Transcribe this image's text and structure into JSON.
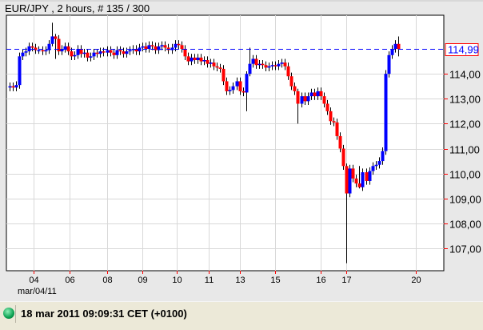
{
  "header": {
    "title": "EUR/JPY , 2 hours, # 135 / 300"
  },
  "status": {
    "indicator": "connected-green-led",
    "datetime": "18 mar 2011 09:09:31  CET (+0100)"
  },
  "chart_data": {
    "type": "candlestick",
    "symbol": "EUR/JPY",
    "timeframe": "2 hours",
    "ylim": [
      106.1,
      116.35
    ],
    "y_ticks": [
      "114,00",
      "113,00",
      "112,00",
      "111,00",
      "110,00",
      "109,00",
      "108,00",
      "107,00"
    ],
    "y_tick_values": [
      114,
      113,
      112,
      111,
      110,
      109,
      108,
      107
    ],
    "x_ticks": [
      {
        "label": "04",
        "index": 7.5
      },
      {
        "label": "06",
        "index": 18.5
      },
      {
        "label": "08",
        "index": 30
      },
      {
        "label": "09",
        "index": 41
      },
      {
        "label": "10",
        "index": 51.5
      },
      {
        "label": "11",
        "index": 61.5
      },
      {
        "label": "13",
        "index": 71
      },
      {
        "label": "15",
        "index": 82
      },
      {
        "label": "16",
        "index": 96
      },
      {
        "label": "17",
        "index": 104
      },
      {
        "label": "20",
        "index": 125.5
      }
    ],
    "x_sublabel": "mar/04/11",
    "current_price": {
      "value": 114.99,
      "label": "114,99",
      "line_color": "#0000ff",
      "box_color": "#ff0000"
    },
    "up_color": "#0000ff",
    "down_color": "#ff0000",
    "grid": true,
    "first_open": 113.45,
    "closes": [
      113.5,
      113.45,
      113.55,
      114.7,
      114.85,
      114.9,
      115.1,
      115.05,
      114.95,
      114.95,
      114.9,
      114.95,
      115.2,
      115.5,
      115.4,
      114.9,
      115.0,
      115.1,
      114.9,
      114.7,
      114.75,
      115.0,
      114.8,
      114.85,
      114.65,
      114.7,
      114.85,
      114.8,
      114.9,
      114.85,
      114.95,
      114.85,
      114.75,
      114.95,
      114.9,
      114.8,
      114.9,
      114.95,
      115.0,
      114.9,
      115.05,
      115.1,
      115.0,
      115.15,
      115.1,
      114.95,
      115.1,
      115.15,
      115.05,
      114.95,
      115.05,
      115.2,
      115.15,
      115.0,
      114.7,
      114.5,
      114.65,
      114.55,
      114.65,
      114.5,
      114.55,
      114.4,
      114.45,
      114.3,
      114.25,
      114.2,
      113.7,
      113.3,
      113.35,
      113.5,
      113.7,
      113.3,
      113.25,
      114.0,
      114.4,
      114.6,
      114.35,
      114.4,
      114.35,
      114.25,
      114.3,
      114.35,
      114.3,
      114.4,
      114.45,
      114.3,
      113.9,
      113.5,
      113.3,
      112.8,
      113.1,
      112.9,
      113.1,
      113.25,
      113.1,
      113.3,
      113.1,
      112.8,
      112.5,
      112.1,
      112.05,
      111.5,
      111.0,
      110.3,
      109.2,
      110.2,
      109.8,
      109.6,
      109.45,
      110.05,
      109.7,
      110.1,
      110.3,
      110.35,
      110.5,
      110.9,
      114.0,
      114.75,
      115.0,
      115.2,
      114.99
    ],
    "wick_overrides": {
      "13": [
        116.05,
        115.1
      ],
      "14": [
        115.6,
        114.6
      ],
      "73": [
        114.1,
        112.5
      ],
      "74": [
        115.05,
        113.9
      ],
      "89": [
        113.4,
        112.0
      ],
      "104": [
        110.4,
        106.4
      ],
      "108": [
        110.3,
        109.4
      ],
      "120": [
        115.5,
        114.7
      ]
    }
  }
}
